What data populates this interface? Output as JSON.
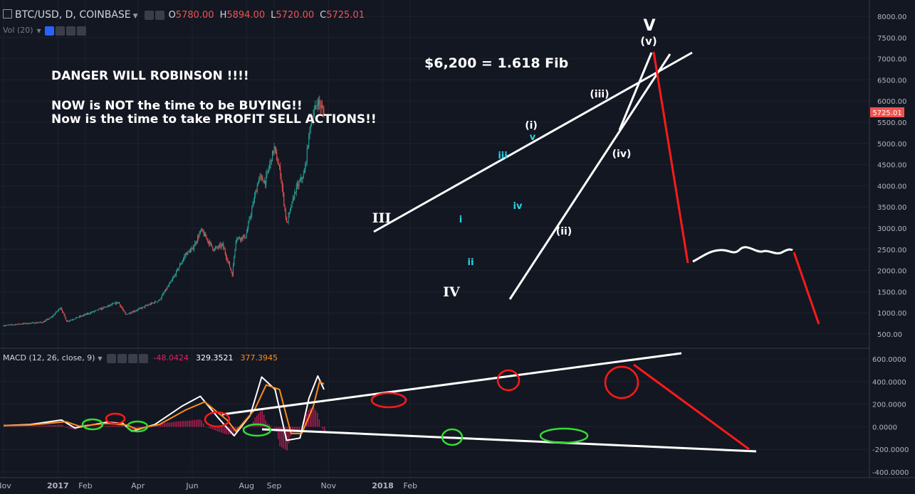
{
  "header": {
    "symbol": "BTC/USD, D, COINBASE",
    "open_label": "O",
    "open_value": "5780.00",
    "high_label": "H",
    "high_value": "5894.00",
    "low_label": "L",
    "low_value": "5720.00",
    "close_label": "C",
    "close_value": "5725.01",
    "volume_label": "Vol (20)"
  },
  "macd_header": {
    "label": "MACD (12, 26, close, 9)",
    "hist_value": "-48.0424",
    "macd_value": "329.3521",
    "signal_value": "377.3945"
  },
  "colors": {
    "background": "#131722",
    "up": "#26a69a",
    "down": "#ef5350",
    "macd_line": "#ffffff",
    "signal_line": "#ff8c1a",
    "histogram": "#e91e63",
    "annotation_red": "#ff1a1a",
    "annotation_green": "#33dd33",
    "wave_cyan": "#29d3e6"
  },
  "chart_data": [
    {
      "type": "candlestick",
      "name": "BTC/USD daily",
      "y_axis_ticks": [
        500,
        1000,
        1500,
        2000,
        2500,
        3000,
        3500,
        4000,
        4500,
        5000,
        5500,
        6000,
        6500,
        7000,
        7500,
        8000
      ],
      "ylim": [
        300,
        8200
      ],
      "last_price_label": "5725.01",
      "x_axis_labels": [
        "Nov",
        "2017",
        "Feb",
        "Apr",
        "Jun",
        "Aug",
        "Sep",
        "Nov",
        "2018",
        "Feb"
      ],
      "price_path": [
        [
          "2016-11-01",
          700
        ],
        [
          "2016-11-20",
          740
        ],
        [
          "2016-12-15",
          780
        ],
        [
          "2016-12-25",
          900
        ],
        [
          "2017-01-04",
          1130
        ],
        [
          "2017-01-11",
          800
        ],
        [
          "2017-02-01",
          960
        ],
        [
          "2017-02-25",
          1150
        ],
        [
          "2017-03-10",
          1250
        ],
        [
          "2017-03-18",
          960
        ],
        [
          "2017-04-01",
          1080
        ],
        [
          "2017-04-25",
          1300
        ],
        [
          "2017-05-10",
          1800
        ],
        [
          "2017-05-25",
          2400
        ],
        [
          "2017-06-01",
          2500
        ],
        [
          "2017-06-11",
          2950
        ],
        [
          "2017-06-25",
          2500
        ],
        [
          "2017-07-05",
          2600
        ],
        [
          "2017-07-16",
          1900
        ],
        [
          "2017-07-20",
          2750
        ],
        [
          "2017-07-31",
          2800
        ],
        [
          "2017-08-15",
          4200
        ],
        [
          "2017-08-22",
          4100
        ],
        [
          "2017-09-01",
          4900
        ],
        [
          "2017-09-08",
          4300
        ],
        [
          "2017-09-15",
          3100
        ],
        [
          "2017-09-25",
          3900
        ],
        [
          "2017-10-05",
          4300
        ],
        [
          "2017-10-12",
          5500
        ],
        [
          "2017-10-20",
          6000
        ],
        [
          "2017-10-27",
          5725
        ]
      ]
    },
    {
      "type": "line",
      "name": "MACD (12, 26, close, 9)",
      "y_axis_ticks": [
        -400,
        -200,
        0,
        200,
        400,
        600
      ],
      "ylim": [
        -430,
        660
      ],
      "series": [
        {
          "name": "MACD",
          "points": [
            [
              "2016-11-01",
              10
            ],
            [
              "2016-12-01",
              20
            ],
            [
              "2017-01-05",
              60
            ],
            [
              "2017-01-20",
              -10
            ],
            [
              "2017-02-25",
              40
            ],
            [
              "2017-03-15",
              30
            ],
            [
              "2017-03-25",
              -40
            ],
            [
              "2017-04-20",
              20
            ],
            [
              "2017-05-20",
              180
            ],
            [
              "2017-06-10",
              270
            ],
            [
              "2017-06-30",
              80
            ],
            [
              "2017-07-18",
              -80
            ],
            [
              "2017-08-05",
              100
            ],
            [
              "2017-08-18",
              440
            ],
            [
              "2017-09-02",
              330
            ],
            [
              "2017-09-15",
              -120
            ],
            [
              "2017-09-30",
              -100
            ],
            [
              "2017-10-10",
              250
            ],
            [
              "2017-10-20",
              450
            ],
            [
              "2017-10-27",
              330
            ]
          ]
        },
        {
          "name": "Signal",
          "points": [
            [
              "2016-11-01",
              10
            ],
            [
              "2016-12-01",
              15
            ],
            [
              "2017-01-10",
              45
            ],
            [
              "2017-01-25",
              5
            ],
            [
              "2017-02-25",
              30
            ],
            [
              "2017-03-20",
              15
            ],
            [
              "2017-03-30",
              -20
            ],
            [
              "2017-04-25",
              20
            ],
            [
              "2017-05-25",
              150
            ],
            [
              "2017-06-15",
              220
            ],
            [
              "2017-07-10",
              60
            ],
            [
              "2017-07-20",
              -40
            ],
            [
              "2017-08-10",
              150
            ],
            [
              "2017-08-23",
              370
            ],
            [
              "2017-09-07",
              330
            ],
            [
              "2017-09-20",
              -60
            ],
            [
              "2017-10-02",
              -60
            ],
            [
              "2017-10-15",
              180
            ],
            [
              "2017-10-22",
              400
            ],
            [
              "2017-10-27",
              377
            ]
          ]
        }
      ]
    }
  ],
  "annotations": {
    "danger": "DANGER WILL ROBINSON !!!!",
    "not_buying": "NOW is NOT the time to be BUYING!!",
    "take_profit": "Now is the time to take PROFIT SELL ACTIONS!!",
    "fib": "$6,200 = 1.618 Fib",
    "wave_V": "V",
    "wave_v_minor": "(v)",
    "wave_III": "III",
    "wave_IV": "IV",
    "wave_i_minor": "(i)",
    "wave_ii_minor": "(ii)",
    "wave_iii_minor": "(iii)",
    "wave_iv_minor": "(iv)",
    "sub_i": "i",
    "sub_ii": "ii",
    "sub_iii": "iii",
    "sub_iv": "iv",
    "sub_v": "v"
  }
}
